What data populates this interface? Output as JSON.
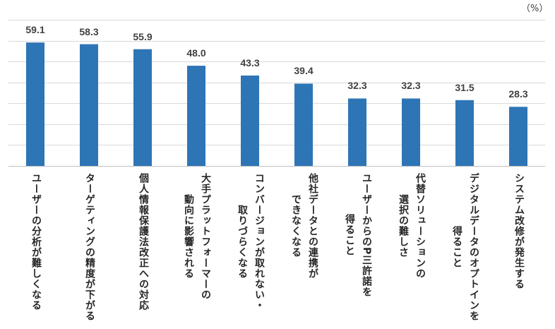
{
  "chart_data": {
    "type": "bar",
    "unit": "（%）",
    "categories": [
      "ユーザーの分析が難しくなる",
      "ターゲティングの精度が下がる",
      "個人情報保護法改正への対応",
      "大手プラットフォーマーの\n動向に影響される",
      "コンバージョンが取れない・\n取りづらくなる",
      "他社データとの連携が\nできなくなる",
      "ユーザーからのP三許諾を\n得ること",
      "代替ソリューションの\n選択の難しさ",
      "デジタルデータのオプトインを\n得ること",
      "システム改修が発生する"
    ],
    "values": [
      59.1,
      58.3,
      55.9,
      48.0,
      43.3,
      39.4,
      32.3,
      32.3,
      31.5,
      28.3
    ],
    "ylim": [
      0,
      70
    ],
    "y_grid_step": 10,
    "grid": true,
    "data_labels": true,
    "legend": "none"
  },
  "colors": {
    "bar": "#2E75B6",
    "gridline": "#D9D9D9",
    "baseline": "#BFBFBF",
    "text": "#404040"
  }
}
